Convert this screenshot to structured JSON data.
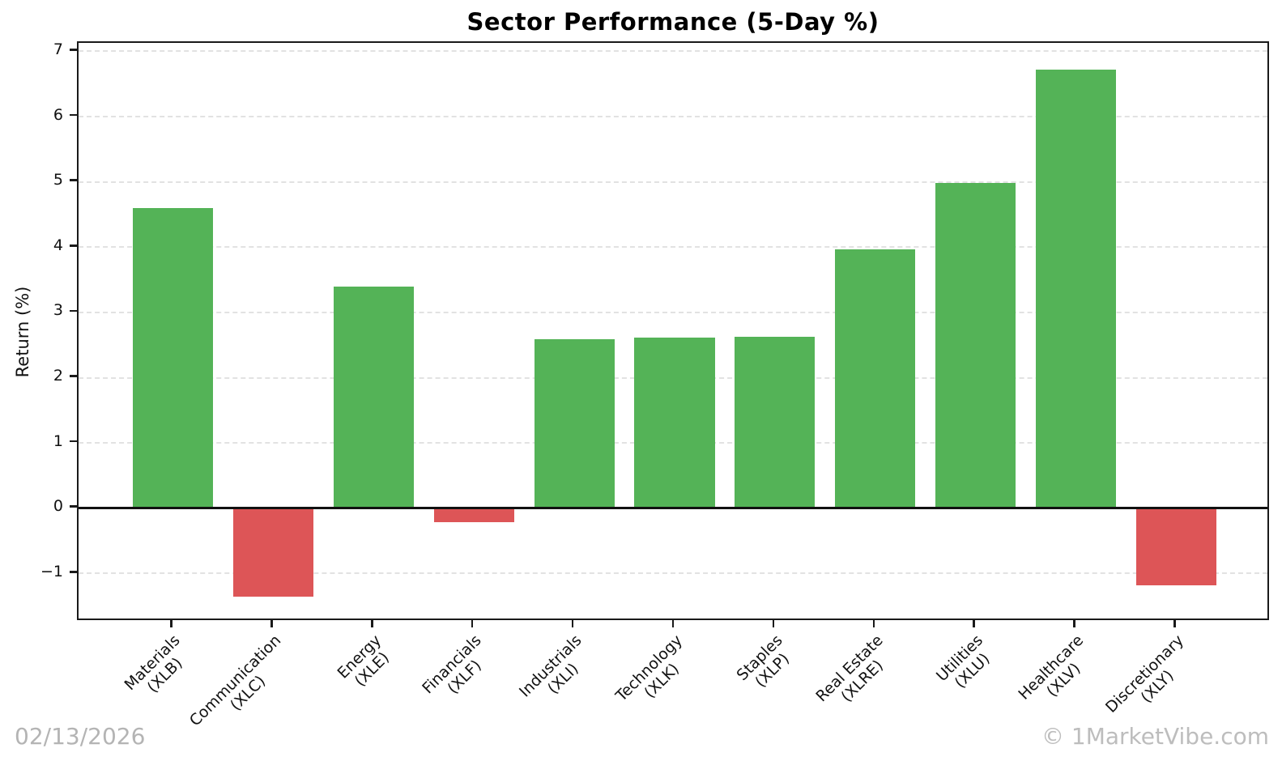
{
  "title": "Sector Performance (5-Day %)",
  "y_axis": {
    "label": "Return (%)"
  },
  "footer": {
    "date": "02/13/2026",
    "watermark": "© 1MarketVibe.com"
  },
  "chart_data": {
    "type": "bar",
    "title": "Sector Performance (5-Day %)",
    "xlabel": "",
    "ylabel": "Return (%)",
    "categories": [
      {
        "name": "Materials",
        "ticker": "(XLB)"
      },
      {
        "name": "Communication",
        "ticker": "(XLC)"
      },
      {
        "name": "Energy",
        "ticker": "(XLE)"
      },
      {
        "name": "Financials",
        "ticker": "(XLF)"
      },
      {
        "name": "Industrials",
        "ticker": "(XLI)"
      },
      {
        "name": "Technology",
        "ticker": "(XLK)"
      },
      {
        "name": "Staples",
        "ticker": "(XLP)"
      },
      {
        "name": "Real Estate",
        "ticker": "(XLRE)"
      },
      {
        "name": "Utilities",
        "ticker": "(XLU)"
      },
      {
        "name": "Healthcare",
        "ticker": "(XLV)"
      },
      {
        "name": "Discretionary",
        "ticker": "(XLY)"
      }
    ],
    "values": [
      4.6,
      -1.35,
      3.39,
      -0.22,
      2.59,
      2.61,
      2.63,
      3.97,
      4.98,
      6.72,
      -1.18
    ],
    "ylim": [
      -1.74,
      7.13
    ],
    "yticks": [
      -1,
      0,
      1,
      2,
      3,
      4,
      5,
      6,
      7
    ],
    "grid": "horizontal-dashed",
    "zero_line": true,
    "legend": "none",
    "positive_color": "#54b357",
    "negative_color": "#dd5557",
    "grid_color": "#e2e2e2",
    "text_color": "#111111",
    "watermark_color": "#bdbdbd"
  }
}
